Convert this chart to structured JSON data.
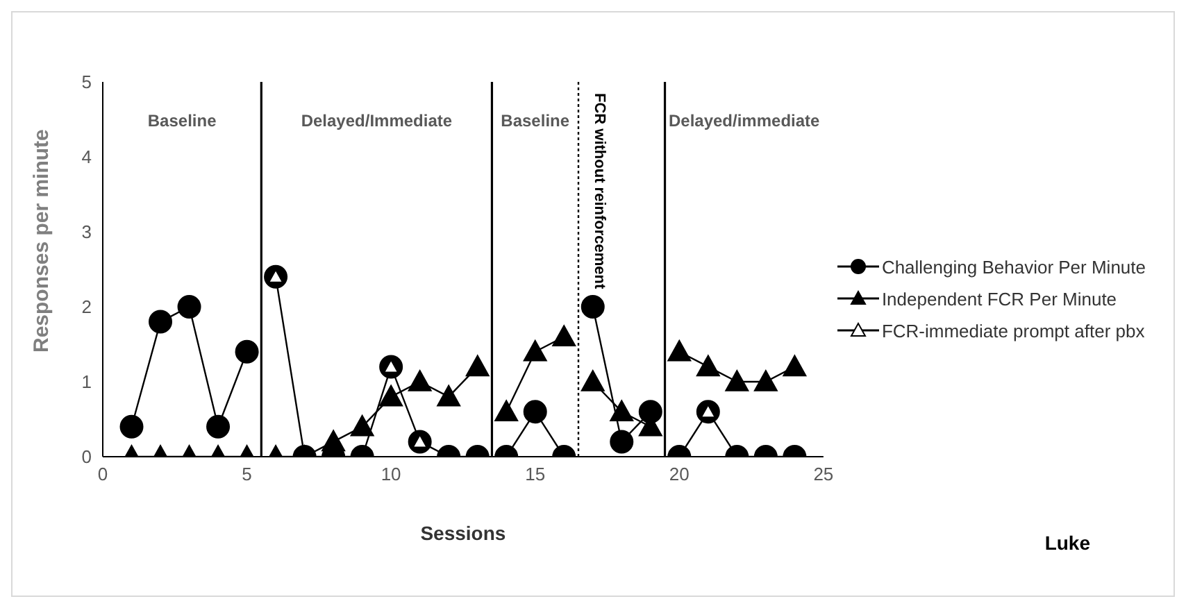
{
  "chart_data": {
    "type": "line",
    "xlabel": "Sessions",
    "ylabel": "Responses per minute",
    "xlim": [
      0,
      25
    ],
    "xticks": [
      0,
      5,
      10,
      15,
      20,
      25
    ],
    "ylim": [
      0,
      5
    ],
    "yticks": [
      0,
      1,
      2,
      3,
      4,
      5
    ],
    "grid": false,
    "legend": "right",
    "series": [
      {
        "name": "Challenging Behavior Per Minute",
        "color": "#000000",
        "marker": "circle",
        "x": [
          1,
          2,
          3,
          4,
          5,
          5.5,
          6,
          7,
          8,
          9,
          10,
          11,
          12,
          13,
          13.5,
          14,
          15,
          16,
          16.5,
          17,
          18,
          19,
          19.5,
          20,
          21,
          22,
          23,
          24
        ],
        "values": [
          0.4,
          1.8,
          2.0,
          0.4,
          1.4,
          null,
          2.4,
          0,
          0,
          0,
          1.2,
          0.2,
          0,
          0,
          null,
          0,
          0.6,
          0,
          null,
          2.0,
          0.2,
          0.6,
          null,
          0,
          0.6,
          0,
          0,
          0
        ]
      },
      {
        "name": "Independent FCR Per Minute",
        "color": "#000000",
        "marker": "triangle",
        "x": [
          1,
          2,
          3,
          4,
          5,
          5.5,
          6,
          7,
          8,
          9,
          10,
          11,
          12,
          13,
          13.5,
          14,
          15,
          16,
          16.5,
          17,
          18,
          19,
          19.5,
          20,
          21,
          22,
          23,
          24
        ],
        "values": [
          0,
          0,
          0,
          0,
          0,
          null,
          0,
          0,
          0.2,
          0.4,
          0.8,
          1.0,
          0.8,
          1.2,
          null,
          0.6,
          1.4,
          1.6,
          null,
          1.0,
          0.6,
          0.4,
          null,
          1.4,
          1.2,
          1.0,
          1.0,
          1.2
        ]
      },
      {
        "name": "FCR-immediate prompt after pbx",
        "type": "scatter",
        "color": "#ffffff",
        "marker": "triangle",
        "x": [
          6,
          10,
          11,
          21
        ],
        "values": [
          2.4,
          1.2,
          0.2,
          0.6
        ]
      }
    ],
    "ref_lines": [
      {
        "axis": "x",
        "value": 5.5,
        "label": null,
        "line_style": "solid"
      },
      {
        "axis": "x",
        "value": 13.5,
        "label": null,
        "line_style": "solid"
      },
      {
        "axis": "x",
        "value": 16.5,
        "label": "FCR without reinforcement",
        "line_style": "dotted"
      },
      {
        "axis": "x",
        "value": 19.5,
        "label": null,
        "line_style": "solid"
      }
    ],
    "annotations": [
      "Baseline",
      "Delayed/Immediate",
      "Baseline",
      "Delayed/immediate",
      "Luke"
    ]
  }
}
